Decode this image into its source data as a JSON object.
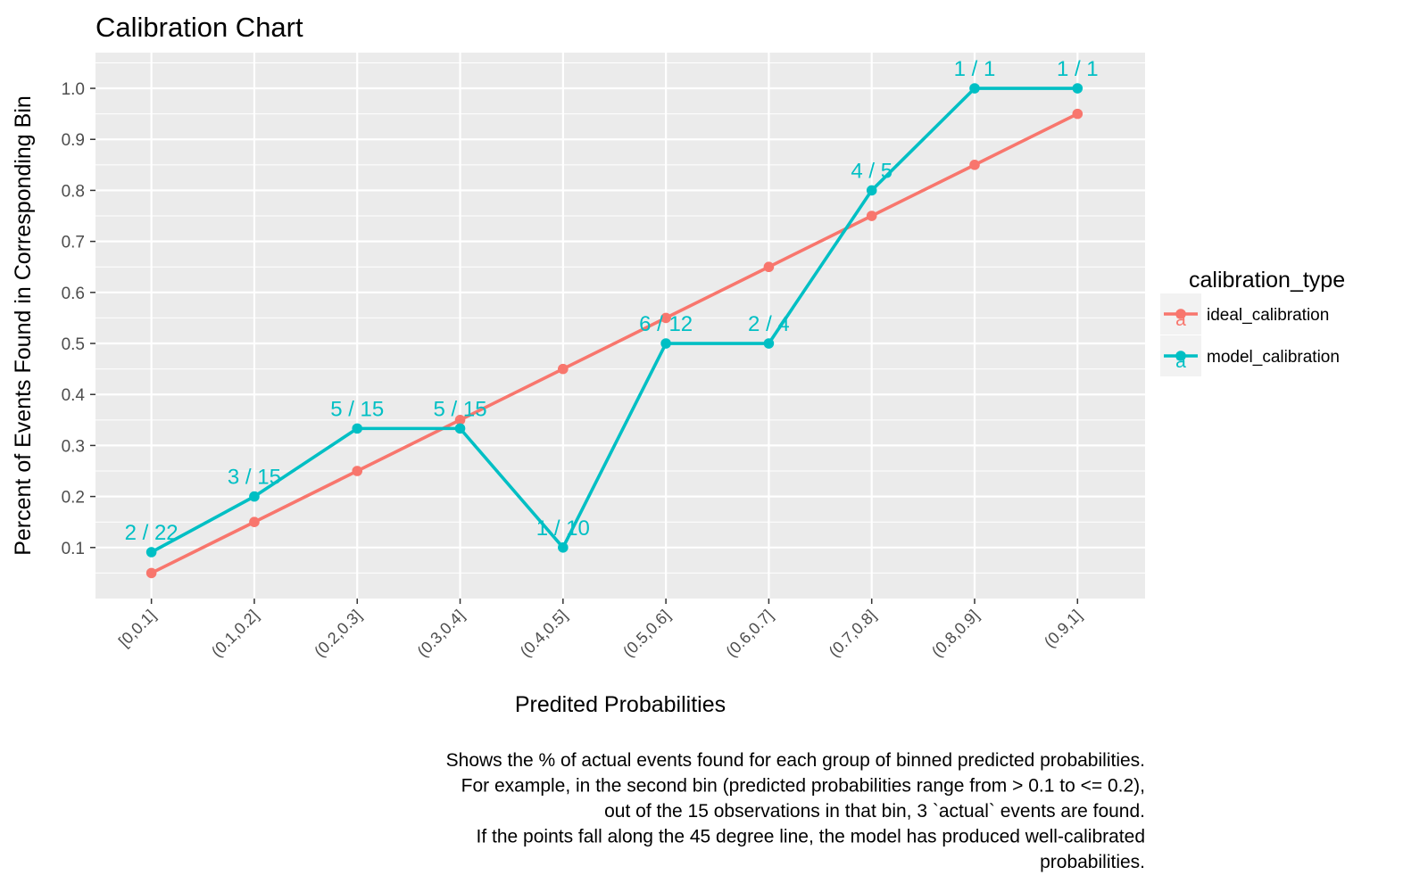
{
  "chart_data": {
    "type": "line",
    "title": "Calibration Chart",
    "xlabel": "Predited Probabilities",
    "ylabel": "Percent of Events Found in Corresponding Bin",
    "categories": [
      "[0,0.1]",
      "(0.1,0.2]",
      "(0.2,0.3]",
      "(0.3,0.4]",
      "(0.4,0.5]",
      "(0.5,0.6]",
      "(0.6,0.7]",
      "(0.7,0.8]",
      "(0.8,0.9]",
      "(0.9,1]"
    ],
    "yticks": [
      "0.1",
      "0.2",
      "0.3",
      "0.4",
      "0.5",
      "0.6",
      "0.7",
      "0.8",
      "0.9",
      "1.0"
    ],
    "ylim": [
      0,
      1.07
    ],
    "grid": true,
    "legend": {
      "title": "calibration_type",
      "position": "right",
      "key_glyph": "a"
    },
    "series": [
      {
        "name": "ideal_calibration",
        "color": "#F8766D",
        "values": [
          0.05,
          0.15,
          0.25,
          0.35,
          0.45,
          0.55,
          0.65,
          0.75,
          0.85,
          0.95
        ]
      },
      {
        "name": "model_calibration",
        "color": "#00BFC4",
        "values": [
          0.0909,
          0.2,
          0.3333,
          0.3333,
          0.1,
          0.5,
          0.5,
          0.8,
          1.0,
          1.0
        ],
        "labels": [
          "2 / 22",
          "3 / 15",
          "5 / 15",
          "5 / 15",
          "1 / 10",
          "6 / 12",
          "2 / 4",
          "4 / 5",
          "1 / 1",
          "1 / 1"
        ]
      }
    ],
    "caption": [
      "Shows the % of actual events found for each group of binned predicted probabilities.",
      "For example, in the second bin (predicted probabilities range from > 0.1 to <= 0.2),",
      "out of the 15 observations in that bin, 3 `actual` events are found.",
      "If the points fall along the 45 degree line, the model has produced well-calibrated",
      "probabilities."
    ]
  }
}
